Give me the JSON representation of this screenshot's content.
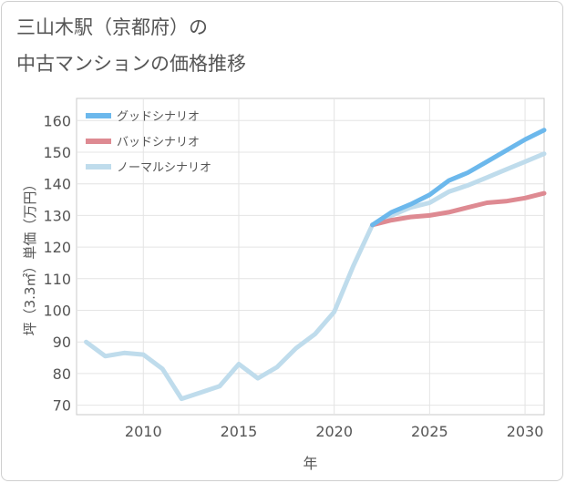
{
  "title_line1": "三山木駅（京都府）の",
  "title_line2": "中古マンションの価格推移",
  "chart_data": {
    "type": "line",
    "xlabel": "年",
    "ylabel": "坪（3.3㎡）単価（万円）",
    "xlim": [
      2006.5,
      2031
    ],
    "ylim": [
      67,
      167
    ],
    "xticks": [
      2010,
      2015,
      2020,
      2025,
      2030
    ],
    "yticks": [
      70,
      80,
      90,
      100,
      110,
      120,
      130,
      140,
      150,
      160
    ],
    "grid": true,
    "legend_position": "top-left",
    "series": [
      {
        "name": "グッドシナリオ",
        "color": "#6cb8ec",
        "x": [
          2022,
          2023,
          2024,
          2025,
          2026,
          2027,
          2028,
          2029,
          2030,
          2031
        ],
        "y": [
          127,
          131,
          133.5,
          136.5,
          141,
          143.5,
          147,
          150.5,
          154,
          157
        ]
      },
      {
        "name": "バッドシナリオ",
        "color": "#de8a92",
        "x": [
          2022,
          2023,
          2024,
          2025,
          2026,
          2027,
          2028,
          2029,
          2030,
          2031
        ],
        "y": [
          127,
          128.5,
          129.5,
          130,
          131,
          132.5,
          134,
          134.5,
          135.5,
          137
        ]
      },
      {
        "name": "ノーマルシナリオ",
        "color": "#bfdcec",
        "x": [
          2007,
          2008,
          2009,
          2010,
          2011,
          2012,
          2013,
          2014,
          2015,
          2016,
          2017,
          2018,
          2019,
          2020,
          2021,
          2022,
          2023,
          2024,
          2025,
          2026,
          2027,
          2028,
          2029,
          2030,
          2031
        ],
        "y": [
          90,
          85.5,
          86.5,
          86,
          81.5,
          72,
          74,
          76,
          83,
          78.5,
          82,
          88,
          92.5,
          99.5,
          114,
          127,
          130,
          132.5,
          134,
          137.5,
          139.5,
          142,
          144.5,
          147,
          149.5
        ]
      }
    ]
  }
}
